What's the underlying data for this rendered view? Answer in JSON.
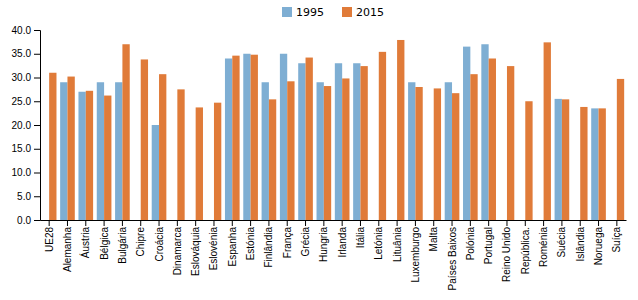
{
  "chart_data": {
    "type": "bar",
    "categories": [
      "UE28",
      "Alemanha",
      "Áustria",
      "Bélgica",
      "Bulgária",
      "Chipre",
      "Croácia",
      "Dinamarca",
      "Eslováquia",
      "Eslovénia",
      "Espanha",
      "Estónia",
      "Finlândia",
      "França",
      "Grécia",
      "Hungria",
      "Irlanda",
      "Itália",
      "Letónia",
      "Lituânia",
      "Luxemburgo",
      "Malta",
      "Países Baixos",
      "Polónia",
      "Portugal",
      "Reino Unido",
      "República.",
      "Roménia",
      "Suécia",
      "Islândia",
      "Noruega",
      "Suíça"
    ],
    "series": [
      {
        "name": "1995",
        "color": "#7eaed3",
        "values": [
          0,
          29.0,
          27.0,
          29.0,
          29.0,
          0,
          20.0,
          0,
          0,
          0,
          34.0,
          35.0,
          29.0,
          35.0,
          33.0,
          29.0,
          33.0,
          33.0,
          0,
          0,
          29.0,
          0,
          29.0,
          36.5,
          37.0,
          0,
          0,
          0,
          25.5,
          0,
          23.5,
          0
        ]
      },
      {
        "name": "2015",
        "color": "#e07b39",
        "values": [
          31.0,
          30.2,
          27.2,
          26.2,
          37.0,
          33.8,
          30.7,
          27.5,
          23.7,
          24.7,
          34.6,
          34.8,
          25.4,
          29.2,
          34.2,
          28.2,
          29.8,
          32.4,
          35.4,
          37.9,
          28.0,
          27.7,
          26.7,
          30.7,
          34.0,
          32.4,
          25.0,
          37.4,
          25.4,
          23.8,
          23.5,
          29.7
        ]
      }
    ],
    "ylim": [
      0,
      40.0
    ],
    "yticks": [
      {
        "value": 0.0,
        "label": "0.0"
      },
      {
        "value": 5.0,
        "label": "5.0"
      },
      {
        "value": 10.0,
        "label": "10.0"
      },
      {
        "value": 15.0,
        "label": "15.0"
      },
      {
        "value": 20.0,
        "label": "20.0"
      },
      {
        "value": 25.0,
        "label": "25.0"
      },
      {
        "value": 30.0,
        "label": "30.0"
      },
      {
        "value": 35.0,
        "label": "35.0"
      },
      {
        "value": 40.0,
        "label": "40.0"
      }
    ],
    "grid": false,
    "legend": "top"
  }
}
